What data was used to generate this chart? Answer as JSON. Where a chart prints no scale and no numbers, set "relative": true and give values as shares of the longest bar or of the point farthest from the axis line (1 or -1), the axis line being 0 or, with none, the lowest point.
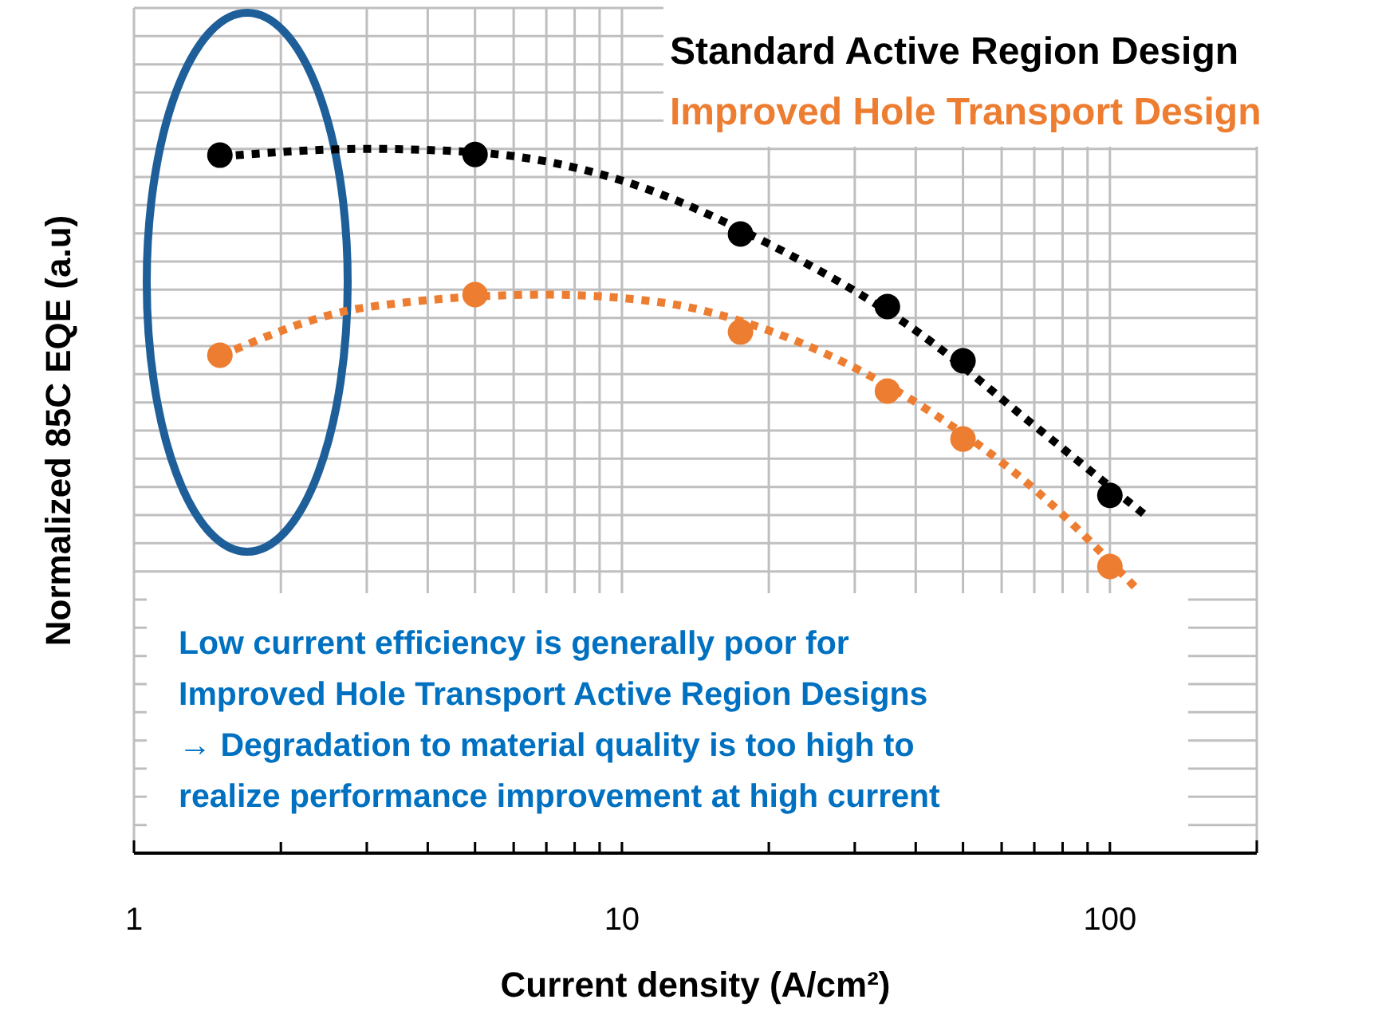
{
  "chart_data": {
    "type": "scatter",
    "relative": true,
    "xlabel": "Current density (A/cm²)",
    "ylabel": "Normalized 85C EQE (a.u)",
    "log": "x",
    "xlim": [
      1,
      200
    ],
    "xticks": [
      1,
      {
        "value": 2,
        "label": null
      },
      {
        "value": 3,
        "label": null
      },
      {
        "value": 4,
        "label": null
      },
      {
        "value": 5,
        "label": null
      },
      {
        "value": 6,
        "label": null
      },
      {
        "value": 7,
        "label": null
      },
      {
        "value": 8,
        "label": null
      },
      {
        "value": 9,
        "label": null
      },
      10,
      {
        "value": 20,
        "label": null
      },
      {
        "value": 30,
        "label": null
      },
      {
        "value": 40,
        "label": null
      },
      {
        "value": 50,
        "label": null
      },
      {
        "value": 60,
        "label": null
      },
      {
        "value": 70,
        "label": null
      },
      {
        "value": 80,
        "label": null
      },
      {
        "value": 90,
        "label": null
      },
      100,
      {
        "value": 200,
        "label": null
      }
    ],
    "grid": true,
    "legend": "top right",
    "marker": "circle",
    "series": [
      {
        "name": "Standard Active Region Design",
        "color": "#000000",
        "x": [
          1.5,
          5,
          17.5,
          35,
          50,
          100
        ],
        "values": [
          0.991,
          0.992,
          0.879,
          0.776,
          0.699,
          0.508
        ]
      },
      {
        "name": "Improved Hole Transport Design",
        "color": "#ed7d31",
        "x": [
          1.5,
          5,
          17.5,
          35,
          50,
          100
        ],
        "values": [
          0.707,
          0.793,
          0.74,
          0.656,
          0.588,
          0.407
        ]
      },
      {
        "type": "line",
        "line_style": "dotted",
        "marker": "none",
        "color": "#000000",
        "x": [
          1.5,
          3,
          5,
          10,
          20,
          40,
          70,
          120
        ],
        "values": [
          0.989,
          1.0,
          0.995,
          0.955,
          0.865,
          0.742,
          0.607,
          0.476
        ]
      },
      {
        "type": "line",
        "line_style": "dotted",
        "marker": "none",
        "color": "#ed7d31",
        "x": [
          1.5,
          3,
          7,
          12,
          20,
          40,
          70,
          115
        ],
        "values": [
          0.706,
          0.775,
          0.793,
          0.782,
          0.742,
          0.64,
          0.517,
          0.371
        ]
      }
    ],
    "annotations": [
      "Low current efficiency is generally poor for\nImproved Hole Transport Active Region Designs\n→ Degradation to material quality is too high to\nrealize performance improvement at high current"
    ]
  }
}
